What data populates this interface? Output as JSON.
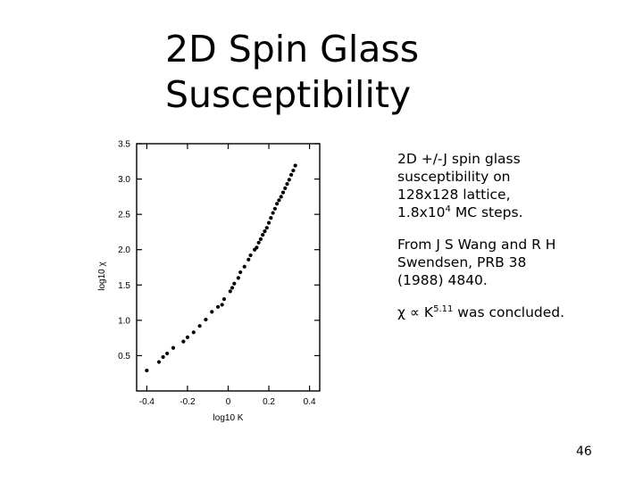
{
  "slide": {
    "title_line1": "2D Spin Glass",
    "title_line2": "Susceptibility",
    "note1": {
      "before_sup": "2D +/-J spin glass susceptibility on 128x128 lattice, 1.8x10",
      "sup": "4",
      "after_sup": " MC steps."
    },
    "note2": "From J S Wang and R H Swendsen, PRB 38 (1988) 4840.",
    "note3": {
      "chi": "χ",
      "propto": "∝",
      "k": " K",
      "exponent": "5.11",
      "after": " was concluded."
    },
    "page_number": "46"
  },
  "chart_data": {
    "type": "scatter",
    "title": "",
    "xlabel": "log10 K",
    "ylabel": "log10 χ",
    "xlim": [
      -0.45,
      0.45
    ],
    "ylim": [
      0.0,
      3.5
    ],
    "xticks": [
      -0.4,
      -0.2,
      0,
      0.2,
      0.4
    ],
    "xtick_labels": [
      "-0.4",
      "-0.2",
      "0",
      "0.2",
      "0.4"
    ],
    "yticks": [
      0.5,
      1.0,
      1.5,
      2.0,
      2.5,
      3.0,
      3.5
    ],
    "ytick_labels": [
      "0.5",
      "1.0",
      "1.5",
      "2.0",
      "2.5",
      "3.0",
      "3.5"
    ],
    "grid": false,
    "series": [
      {
        "x": [
          -0.4,
          -0.34,
          -0.32,
          -0.3,
          -0.27,
          -0.22,
          -0.2,
          -0.17,
          -0.14,
          -0.11,
          -0.08,
          -0.05,
          -0.03,
          -0.02,
          0.01,
          0.02,
          0.03,
          0.05,
          0.06,
          0.08,
          0.1,
          0.11,
          0.13,
          0.14,
          0.15,
          0.16,
          0.17,
          0.18,
          0.19,
          0.2,
          0.21,
          0.22,
          0.23,
          0.24,
          0.25,
          0.26,
          0.27,
          0.28,
          0.29,
          0.3,
          0.31,
          0.32,
          0.33
        ],
        "y": [
          0.29,
          0.41,
          0.48,
          0.53,
          0.61,
          0.7,
          0.76,
          0.83,
          0.92,
          1.01,
          1.12,
          1.19,
          1.22,
          1.3,
          1.41,
          1.46,
          1.52,
          1.6,
          1.68,
          1.76,
          1.86,
          1.92,
          2.0,
          2.03,
          2.1,
          2.15,
          2.21,
          2.26,
          2.31,
          2.38,
          2.45,
          2.52,
          2.58,
          2.65,
          2.7,
          2.75,
          2.81,
          2.87,
          2.93,
          2.99,
          3.06,
          3.12,
          3.19
        ]
      }
    ]
  }
}
